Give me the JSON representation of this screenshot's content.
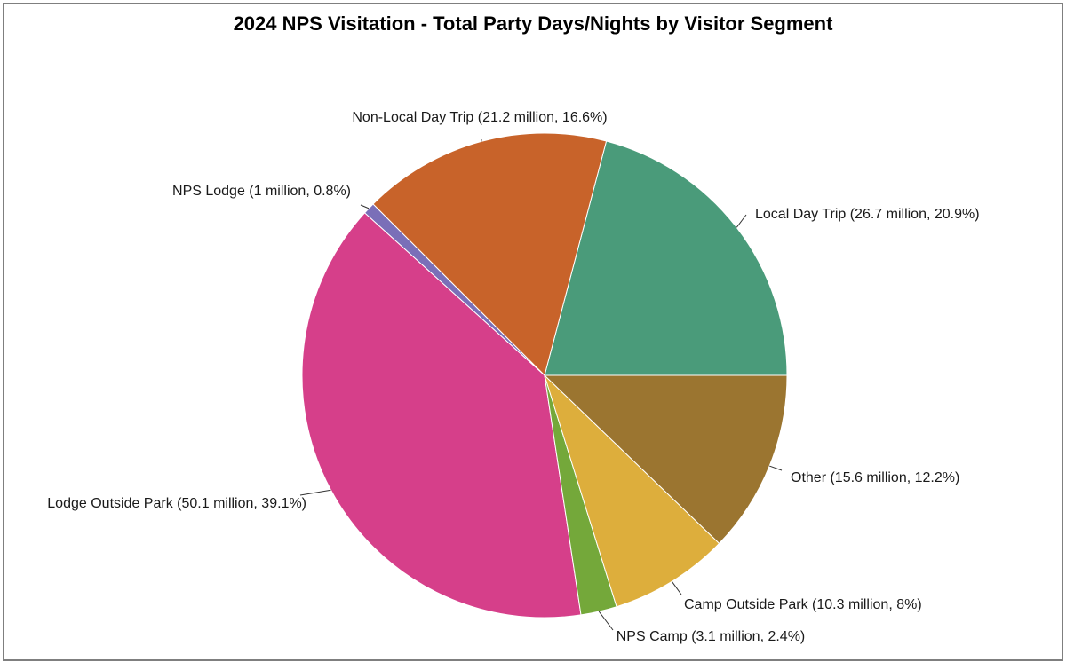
{
  "chart_data": {
    "type": "pie",
    "title": "2024 NPS Visitation - Total Party Days/Nights by Visitor Segment",
    "unit": "million",
    "slices": [
      {
        "name": "Local Day Trip",
        "value": 26.7,
        "percent": 20.9,
        "label": "Local Day Trip (26.7 million, 20.9%)",
        "color": "#4a9b7a"
      },
      {
        "name": "Non-Local Day Trip",
        "value": 21.2,
        "percent": 16.6,
        "label": "Non-Local Day Trip (21.2 million, 16.6%)",
        "color": "#c8632a"
      },
      {
        "name": "NPS Lodge",
        "value": 1,
        "percent": 0.8,
        "label": "NPS Lodge (1 million, 0.8%)",
        "color": "#7a6fb8"
      },
      {
        "name": "Lodge Outside Park",
        "value": 50.1,
        "percent": 39.1,
        "label": "Lodge Outside Park (50.1 million, 39.1%)",
        "color": "#d63f8a"
      },
      {
        "name": "NPS Camp",
        "value": 3.1,
        "percent": 2.4,
        "label": "NPS Camp (3.1 million, 2.4%)",
        "color": "#74a83a"
      },
      {
        "name": "Camp Outside Park",
        "value": 10.3,
        "percent": 8,
        "label": "Camp Outside Park (10.3 million, 8%)",
        "color": "#ddae3c"
      },
      {
        "name": "Other",
        "value": 15.6,
        "percent": 12.2,
        "label": "Other (15.6 million, 12.2%)",
        "color": "#9b7530"
      }
    ],
    "start_direction": "east",
    "rotation": "counterclockwise",
    "legend": "none"
  }
}
